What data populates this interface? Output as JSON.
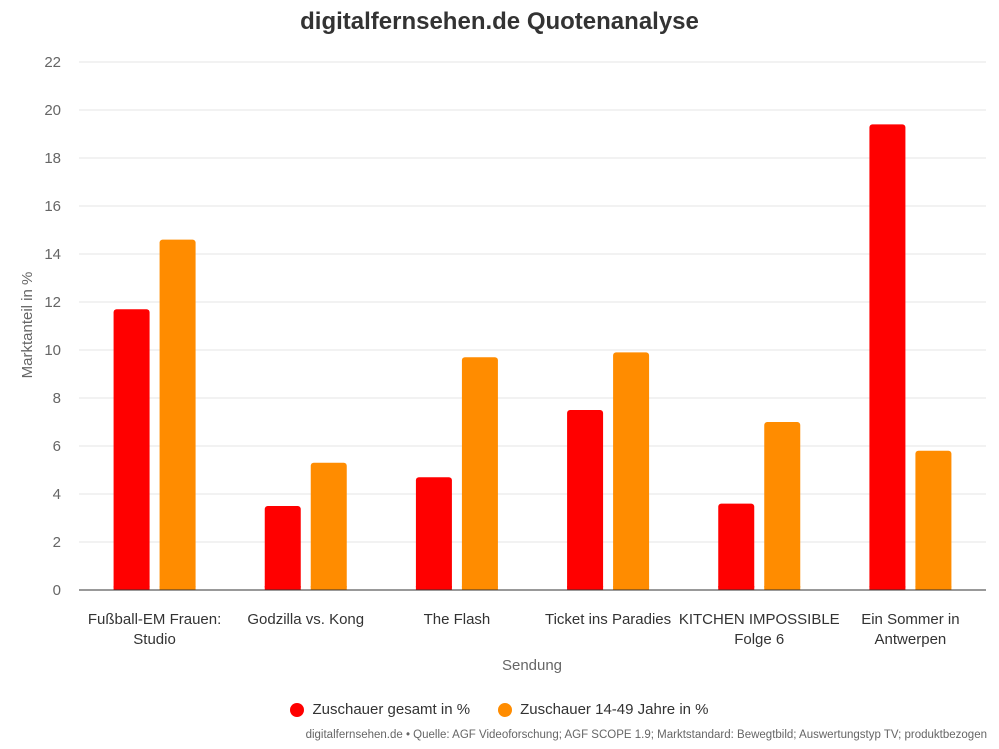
{
  "chart_data": {
    "type": "bar",
    "title": "digitalfernsehen.de Quotenanalyse",
    "xlabel": "Sendung",
    "ylabel": "Marktanteil in %",
    "ylim": [
      0,
      22
    ],
    "yticks": [
      0,
      2,
      4,
      6,
      8,
      10,
      12,
      14,
      16,
      18,
      20,
      22
    ],
    "grid": true,
    "legend_position": "bottom",
    "categories": [
      [
        "Fußball-EM Frauen:",
        "Studio"
      ],
      [
        "Godzilla vs. Kong"
      ],
      [
        "The Flash"
      ],
      [
        "Ticket ins Paradies"
      ],
      [
        "KITCHEN IMPOSSIBLE",
        "Folge 6"
      ],
      [
        "Ein Sommer in",
        "Antwerpen"
      ]
    ],
    "series": [
      {
        "name": "Zuschauer gesamt in %",
        "color": "#ff0000",
        "values": [
          11.7,
          3.5,
          4.7,
          7.5,
          3.6,
          19.4
        ]
      },
      {
        "name": "Zuschauer 14-49 Jahre in %",
        "color": "#ff8c00",
        "values": [
          14.6,
          5.3,
          9.7,
          9.9,
          7.0,
          5.8
        ]
      }
    ]
  },
  "credits": "digitalfernsehen.de • Quelle: AGF Videoforschung; AGF SCOPE 1.9; Marktstandard: Bewegtbild; Auswertungstyp TV; produktbezogen"
}
